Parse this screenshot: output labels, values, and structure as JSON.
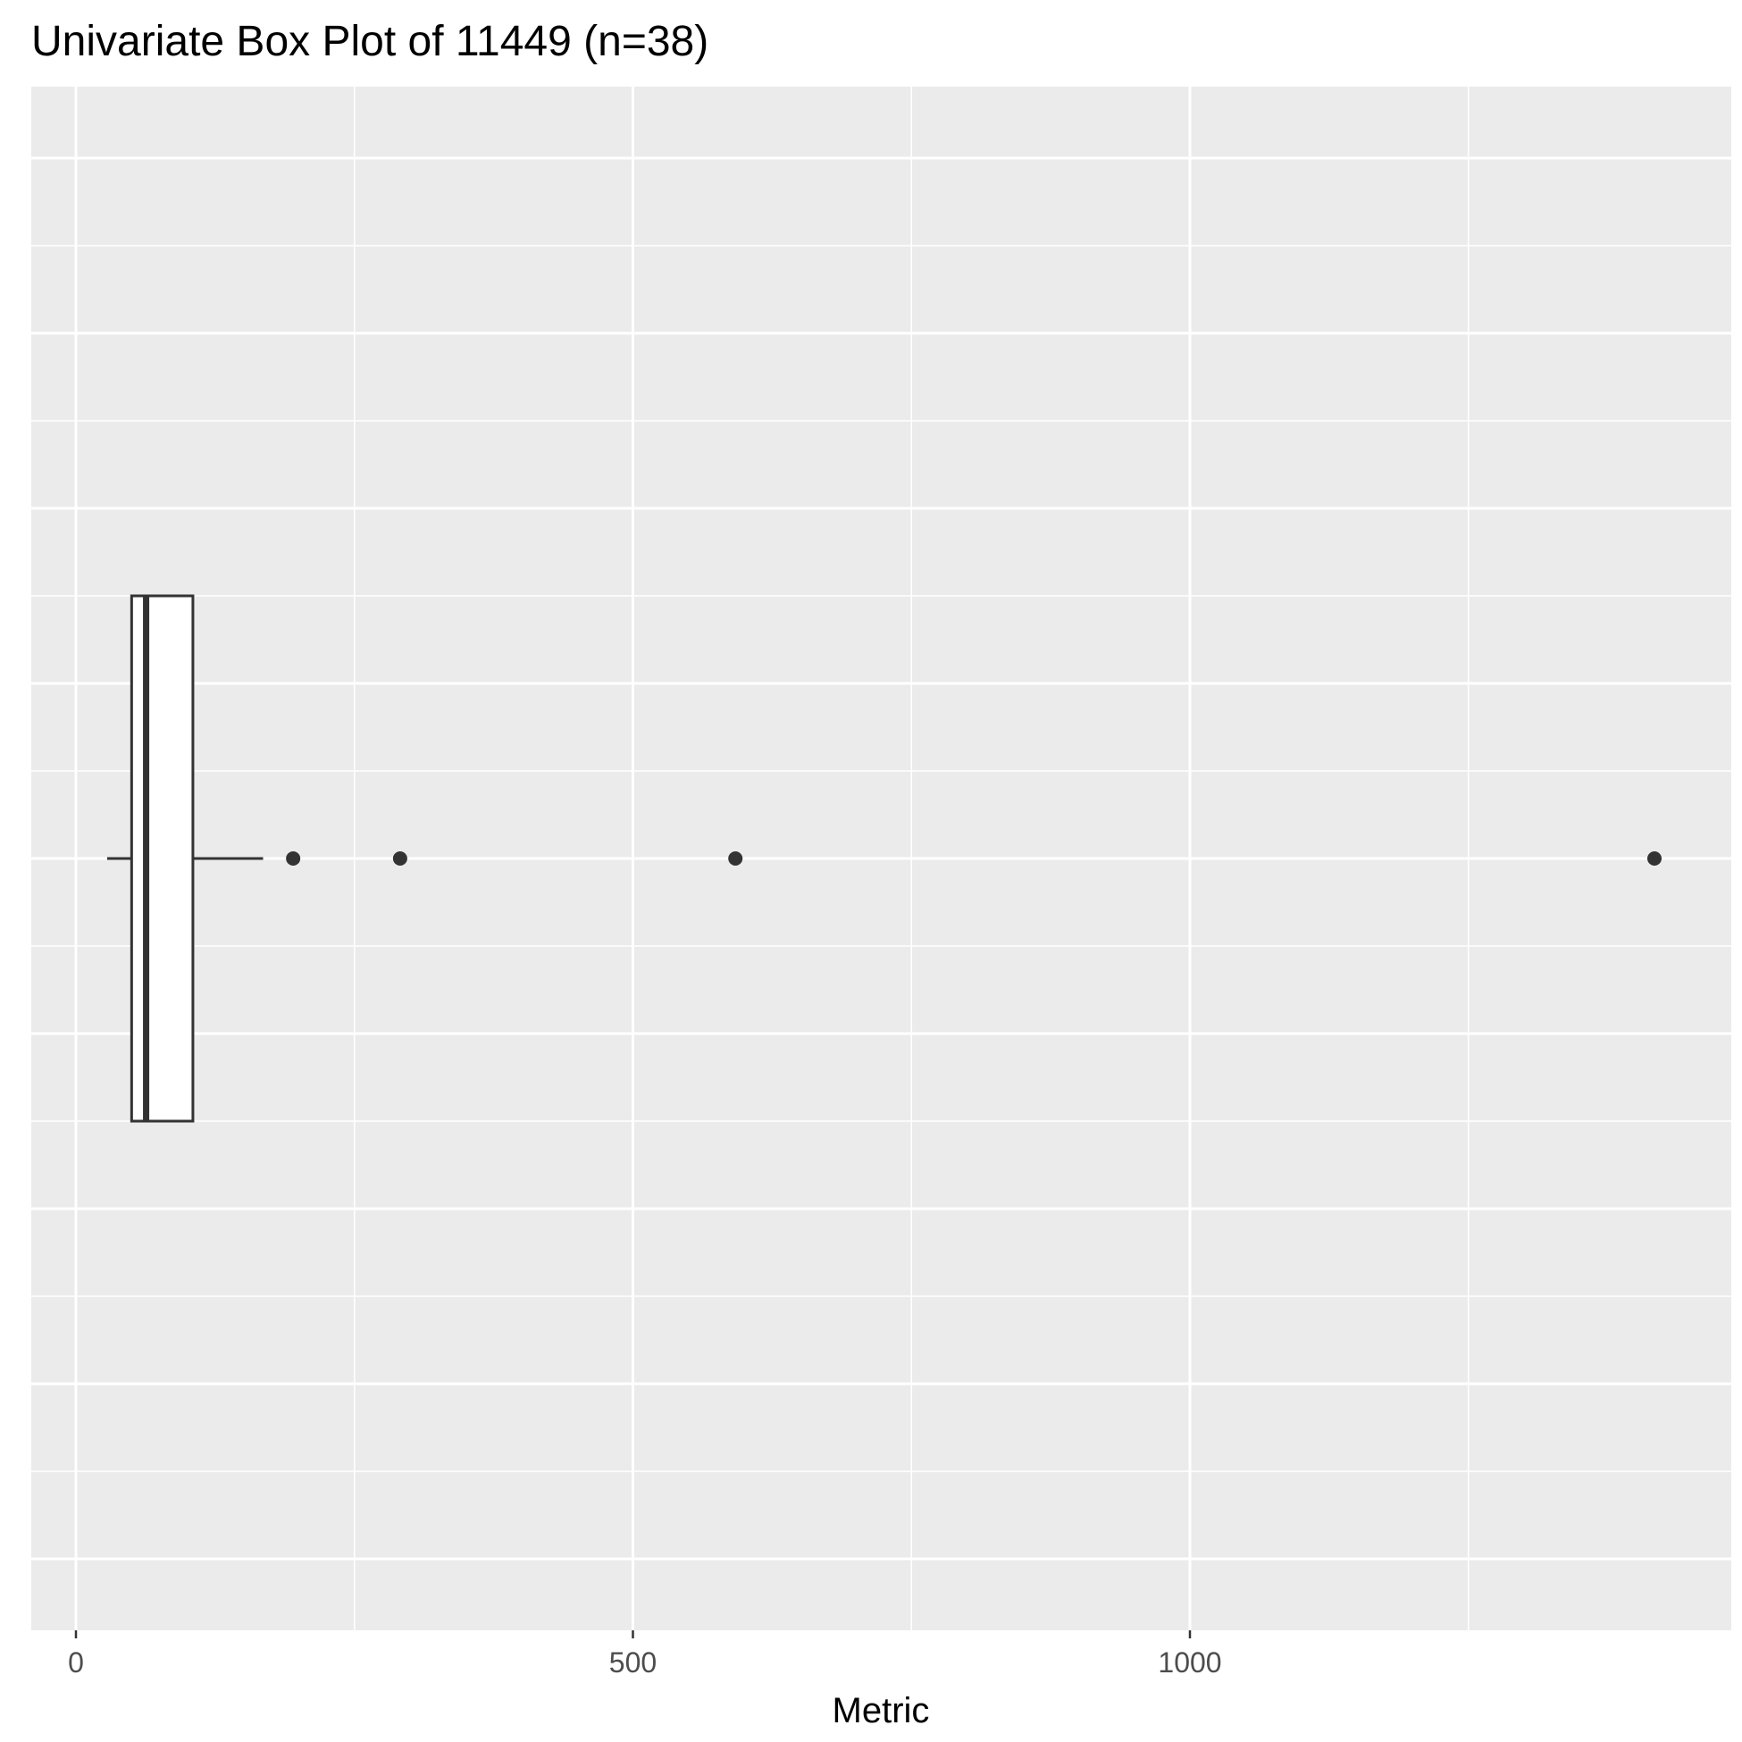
{
  "chart_data": {
    "type": "boxplot",
    "orientation": "horizontal",
    "title": "Univariate Box Plot of 11449 (n=38)",
    "xlabel": "Metric",
    "ylabel": "",
    "xlim": [
      -20,
      1484
    ],
    "x_ticks": [
      0,
      500,
      1000
    ],
    "x_tick_labels": [
      "0",
      "500",
      "1000"
    ],
    "grid": true,
    "box": {
      "whisker_low": 28,
      "q1": 50,
      "median": 63,
      "q3": 105,
      "whisker_high": 168
    },
    "outliers": [
      195,
      291,
      592,
      1417
    ]
  },
  "colors": {
    "panel_background": "#ebebeb",
    "grid_major": "#ffffff",
    "box_fill": "#ffffff",
    "box_stroke": "#333333",
    "outlier": "#333333"
  }
}
